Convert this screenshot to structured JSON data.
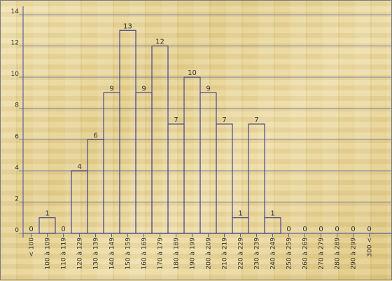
{
  "colors": {
    "bar_stroke": "#3c3c8c",
    "grid": "#6e78b4",
    "axis": "#5a64a0",
    "text": "#333333"
  },
  "chart_data": {
    "type": "bar",
    "title": "",
    "xlabel": "",
    "ylabel": "",
    "ylim": [
      0,
      14
    ],
    "yticks": [
      0,
      2,
      4,
      6,
      8,
      10,
      12,
      14
    ],
    "grid": true,
    "categories": [
      "< 100",
      "100 à 109",
      "110 à 119",
      "120 à 129",
      "130 à 139",
      "140 à 149",
      "150 à 159",
      "160 à 169",
      "170 à 179",
      "180 à 189",
      "190 à 199",
      "200 à 209",
      "210 à 219",
      "220 à 229",
      "230 à 239",
      "240 à 249",
      "250 à 259",
      "260 à 269",
      "270 à 279",
      "280 à 289",
      "290 à 299",
      "300 <"
    ],
    "values": [
      0,
      1,
      0,
      4,
      6,
      9,
      13,
      9,
      12,
      7,
      10,
      9,
      7,
      1,
      7,
      1,
      0,
      0,
      0,
      0,
      0,
      0
    ]
  }
}
